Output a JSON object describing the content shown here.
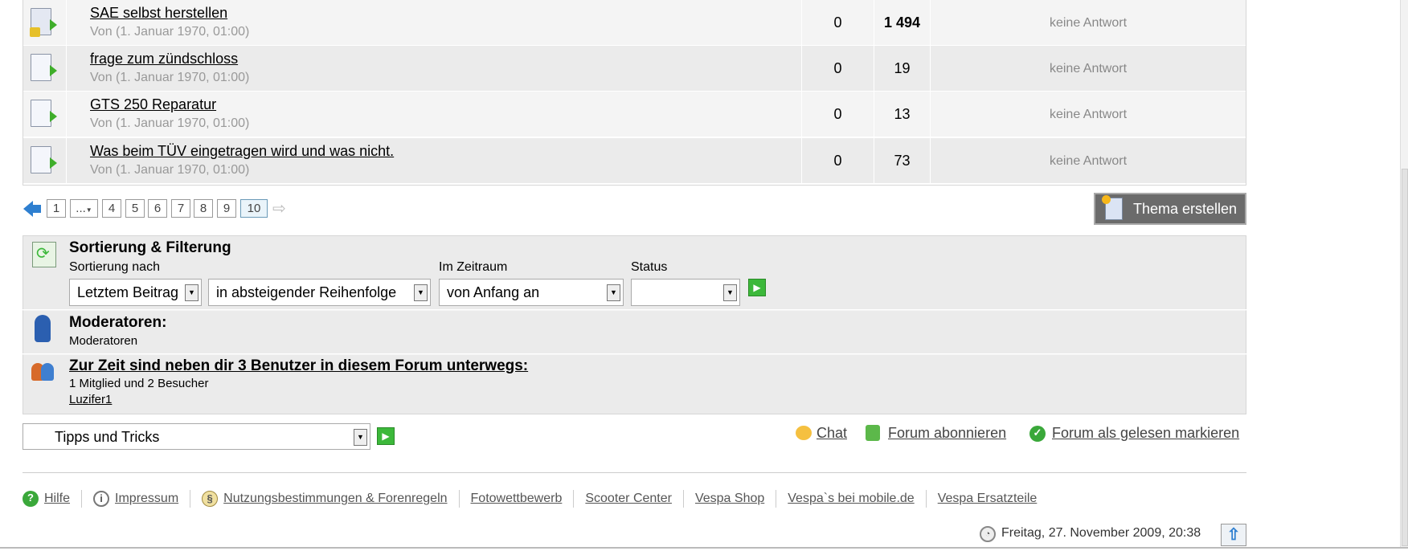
{
  "topics": [
    {
      "title": "SAE selbst herstellen",
      "by": "Von (1. Januar 1970, 01:00)",
      "replies": "0",
      "views": "1 494",
      "views_bold": true,
      "last_post": "keine Antwort",
      "icon": "locked-document-icon"
    },
    {
      "title": "frage zum zündschloss",
      "by": "Von (1. Januar 1970, 01:00)",
      "replies": "0",
      "views": "19",
      "last_post": "keine Antwort",
      "icon": "moved-document-icon"
    },
    {
      "title": "GTS 250 Reparatur",
      "by": "Von (1. Januar 1970, 01:00)",
      "replies": "0",
      "views": "13",
      "last_post": "keine Antwort",
      "icon": "moved-document-icon"
    },
    {
      "title": "Was beim TÜV eingetragen wird und was nicht.",
      "by": "Von (1. Januar 1970, 01:00)",
      "replies": "0",
      "views": "73",
      "last_post": "keine Antwort",
      "icon": "moved-document-icon"
    }
  ],
  "pagination": {
    "pages": [
      "1",
      "...",
      "4",
      "5",
      "6",
      "7",
      "8",
      "9",
      "10"
    ],
    "current": "10"
  },
  "new_topic_label": "Thema erstellen",
  "sort": {
    "title": "Sortierung & Filterung",
    "sort_by_label": "Sortierung nach",
    "sort_by_value": "Letztem Beitrag",
    "order_value": "in absteigender Reihenfolge",
    "period_label": "Im Zeitraum",
    "period_value": "von Anfang an",
    "status_label": "Status",
    "status_value": ""
  },
  "moderators": {
    "title": "Moderatoren:",
    "text": "Moderatoren"
  },
  "online": {
    "title": "Zur Zeit sind neben dir 3 Benutzer in diesem Forum unterwegs:",
    "summary": "1 Mitglied und 2 Besucher",
    "users": [
      "Luzifer1"
    ]
  },
  "forum_jump": {
    "value": "Tipps und Tricks"
  },
  "actions": {
    "chat": "Chat",
    "subscribe": "Forum abonnieren",
    "mark_read": "Forum als gelesen markieren"
  },
  "footer": {
    "links": [
      "Hilfe",
      "Impressum",
      "Nutzungsbestimmungen & Forenregeln",
      "Fotowettbewerb",
      "Scooter Center",
      "Vespa Shop",
      "Vespa`s bei mobile.de",
      "Vespa Ersatzteile"
    ],
    "datetime": "Freitag, 27. November 2009, 20:38"
  },
  "colors": {
    "row_odd": "#f4f4f4",
    "row_even": "#ebebeb",
    "button_bg": "#6b6b6b",
    "accent_green": "#3cb83a"
  }
}
